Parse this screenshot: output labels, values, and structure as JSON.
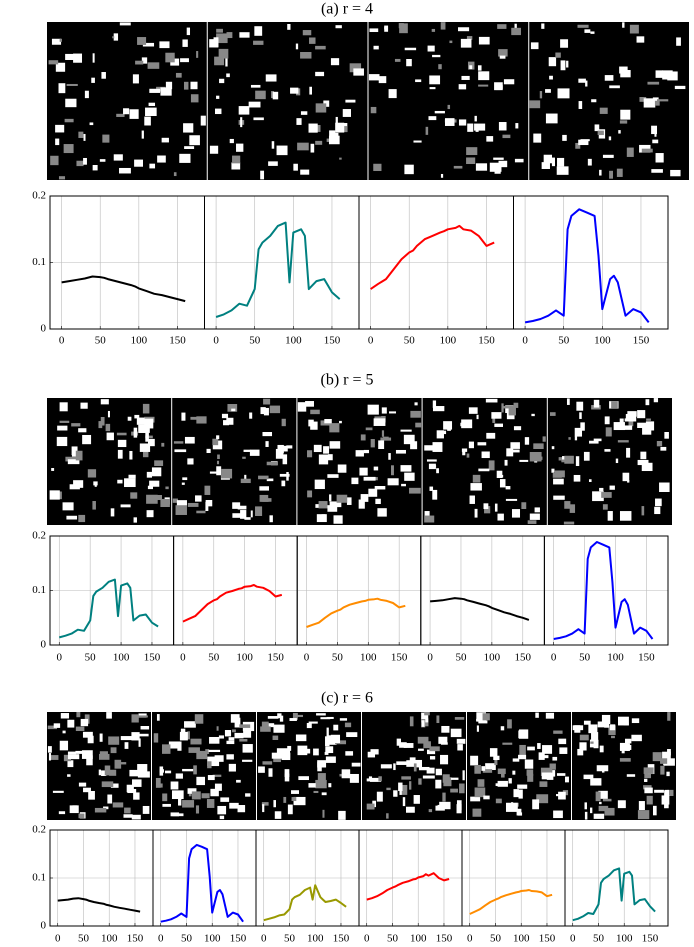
{
  "chart_data": [
    {
      "type": "line",
      "title": "(a) r = 4",
      "x": [
        0,
        10,
        20,
        30,
        40,
        50,
        55,
        60,
        70,
        80,
        90,
        95,
        100,
        110,
        115,
        120,
        130,
        140,
        150,
        160
      ],
      "xlim": [
        -15,
        185
      ],
      "ylim": [
        0,
        0.2
      ],
      "xticks": [
        0,
        50,
        100,
        150
      ],
      "yticks": [
        0,
        0.1,
        0.2
      ],
      "grid": true,
      "series": [
        {
          "color": "#000000",
          "values": [
            0.07,
            0.072,
            0.074,
            0.076,
            0.079,
            0.078,
            0.077,
            0.075,
            0.072,
            0.069,
            0.066,
            0.064,
            0.061,
            0.057,
            0.055,
            0.053,
            0.051,
            0.048,
            0.045,
            0.042
          ]
        },
        {
          "color": "#008080",
          "values": [
            0.018,
            0.022,
            0.028,
            0.038,
            0.035,
            0.06,
            0.12,
            0.13,
            0.14,
            0.155,
            0.16,
            0.07,
            0.145,
            0.15,
            0.14,
            0.06,
            0.072,
            0.075,
            0.055,
            0.045
          ]
        },
        {
          "color": "#ff0000",
          "values": [
            0.06,
            0.068,
            0.075,
            0.09,
            0.105,
            0.115,
            0.118,
            0.125,
            0.135,
            0.14,
            0.145,
            0.147,
            0.15,
            0.152,
            0.155,
            0.15,
            0.148,
            0.14,
            0.125,
            0.13
          ]
        },
        {
          "color": "#0000ff",
          "values": [
            0.01,
            0.012,
            0.015,
            0.02,
            0.028,
            0.02,
            0.15,
            0.17,
            0.18,
            0.175,
            0.17,
            0.11,
            0.03,
            0.075,
            0.08,
            0.07,
            0.02,
            0.03,
            0.025,
            0.01
          ]
        }
      ]
    },
    {
      "type": "line",
      "title": "(b) r = 5",
      "x": [
        0,
        10,
        20,
        30,
        40,
        50,
        55,
        60,
        70,
        80,
        90,
        95,
        100,
        110,
        115,
        120,
        130,
        140,
        150,
        160
      ],
      "xlim": [
        -15,
        185
      ],
      "ylim": [
        0,
        0.2
      ],
      "xticks": [
        0,
        50,
        100,
        150
      ],
      "yticks": [
        0,
        0.1,
        0.2
      ],
      "grid": true,
      "series": [
        {
          "color": "#008080",
          "values": [
            0.014,
            0.017,
            0.021,
            0.028,
            0.026,
            0.045,
            0.09,
            0.098,
            0.105,
            0.116,
            0.12,
            0.053,
            0.109,
            0.113,
            0.105,
            0.045,
            0.054,
            0.056,
            0.041,
            0.034
          ]
        },
        {
          "color": "#ff0000",
          "values": [
            0.043,
            0.048,
            0.053,
            0.064,
            0.075,
            0.082,
            0.084,
            0.089,
            0.096,
            0.099,
            0.103,
            0.104,
            0.107,
            0.108,
            0.11,
            0.107,
            0.105,
            0.099,
            0.089,
            0.092
          ]
        },
        {
          "color": "#ff8c00",
          "values": [
            0.033,
            0.037,
            0.041,
            0.05,
            0.058,
            0.063,
            0.065,
            0.069,
            0.074,
            0.077,
            0.08,
            0.081,
            0.083,
            0.084,
            0.085,
            0.083,
            0.081,
            0.077,
            0.069,
            0.072
          ]
        },
        {
          "color": "#000000",
          "values": [
            0.08,
            0.081,
            0.082,
            0.084,
            0.086,
            0.085,
            0.084,
            0.082,
            0.079,
            0.076,
            0.073,
            0.071,
            0.068,
            0.064,
            0.062,
            0.06,
            0.057,
            0.053,
            0.05,
            0.046
          ]
        },
        {
          "color": "#0000ff",
          "values": [
            0.011,
            0.013,
            0.016,
            0.021,
            0.029,
            0.021,
            0.158,
            0.179,
            0.189,
            0.184,
            0.179,
            0.116,
            0.032,
            0.079,
            0.084,
            0.074,
            0.021,
            0.032,
            0.026,
            0.011
          ]
        }
      ]
    },
    {
      "type": "line",
      "title": "(c) r = 6",
      "x": [
        0,
        10,
        20,
        30,
        40,
        50,
        55,
        60,
        70,
        80,
        90,
        95,
        100,
        110,
        115,
        120,
        130,
        140,
        150,
        160
      ],
      "xlim": [
        -15,
        185
      ],
      "ylim": [
        0,
        0.2
      ],
      "xticks": [
        0,
        50,
        100,
        150
      ],
      "yticks": [
        0,
        0.1,
        0.2
      ],
      "grid": true,
      "series": [
        {
          "color": "#000000",
          "values": [
            0.053,
            0.054,
            0.055,
            0.057,
            0.058,
            0.056,
            0.055,
            0.053,
            0.05,
            0.048,
            0.046,
            0.044,
            0.043,
            0.04,
            0.039,
            0.038,
            0.036,
            0.034,
            0.032,
            0.03
          ]
        },
        {
          "color": "#0000ff",
          "values": [
            0.009,
            0.011,
            0.014,
            0.019,
            0.026,
            0.019,
            0.141,
            0.16,
            0.169,
            0.165,
            0.16,
            0.103,
            0.028,
            0.071,
            0.075,
            0.066,
            0.019,
            0.028,
            0.024,
            0.009
          ]
        },
        {
          "color": "#999900",
          "values": [
            0.012,
            0.015,
            0.018,
            0.022,
            0.024,
            0.035,
            0.055,
            0.06,
            0.065,
            0.075,
            0.08,
            0.055,
            0.085,
            0.06,
            0.055,
            0.05,
            0.052,
            0.055,
            0.048,
            0.04
          ]
        },
        {
          "color": "#ff0000",
          "values": [
            0.055,
            0.058,
            0.062,
            0.068,
            0.075,
            0.08,
            0.082,
            0.085,
            0.09,
            0.093,
            0.097,
            0.098,
            0.101,
            0.104,
            0.108,
            0.105,
            0.11,
            0.1,
            0.095,
            0.098
          ]
        },
        {
          "color": "#ff8c00",
          "values": [
            0.025,
            0.03,
            0.035,
            0.043,
            0.05,
            0.055,
            0.057,
            0.06,
            0.064,
            0.067,
            0.07,
            0.071,
            0.073,
            0.074,
            0.075,
            0.073,
            0.072,
            0.07,
            0.062,
            0.065
          ]
        },
        {
          "color": "#008080",
          "values": [
            0.012,
            0.015,
            0.02,
            0.027,
            0.025,
            0.045,
            0.09,
            0.098,
            0.105,
            0.116,
            0.12,
            0.053,
            0.109,
            0.113,
            0.105,
            0.045,
            0.054,
            0.056,
            0.041,
            0.03
          ]
        }
      ]
    }
  ]
}
